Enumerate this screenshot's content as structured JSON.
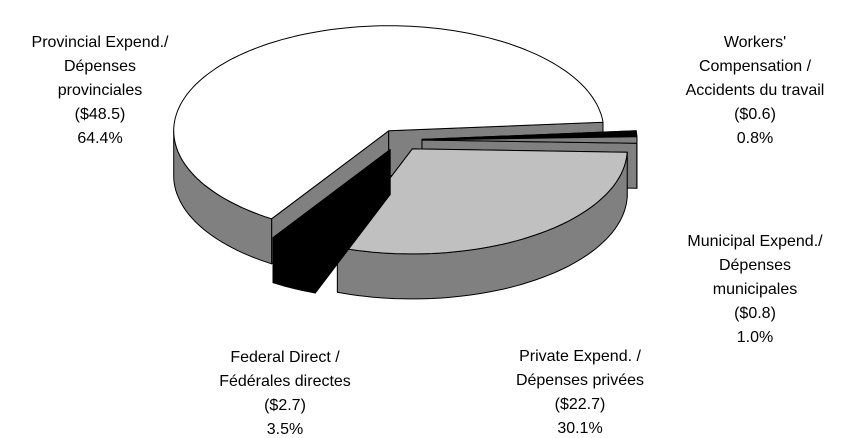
{
  "chart_data": {
    "type": "pie",
    "categories": [
      [
        "Provincial Expend./",
        "Dépenses",
        "provinciales"
      ],
      [
        "Workers'",
        "Compensation /",
        "Accidents du travail"
      ],
      [
        "Municipal Expend./",
        "Dépenses",
        "municipales"
      ],
      [
        "Private Expend. /",
        "Dépenses privées"
      ],
      [
        "Federal Direct /",
        "Fédérales directes"
      ]
    ],
    "amount_labels": [
      "($48.5)",
      "($0.6)",
      "($0.8)",
      "($22.7)",
      "($2.7)"
    ],
    "values": [
      64.4,
      0.8,
      1.0,
      30.1,
      3.5
    ],
    "value_labels": [
      "64.4%",
      "0.8%",
      "1.0%",
      "30.1%",
      "3.5%"
    ],
    "colors": [
      "#ffffff",
      "#000000",
      "#808080",
      "#c0c0c0",
      "#000000"
    ],
    "side_colors": [
      "#808080",
      "#000000",
      "#808080",
      "#808080",
      "#000000"
    ]
  }
}
